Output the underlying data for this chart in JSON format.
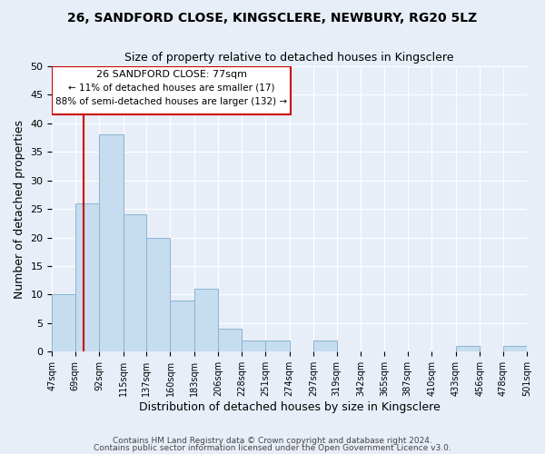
{
  "title1": "26, SANDFORD CLOSE, KINGSCLERE, NEWBURY, RG20 5LZ",
  "title2": "Size of property relative to detached houses in Kingsclere",
  "xlabel": "Distribution of detached houses by size in Kingsclere",
  "ylabel": "Number of detached properties",
  "bar_edges": [
    47,
    69,
    92,
    115,
    137,
    160,
    183,
    206,
    228,
    251,
    274,
    297,
    319,
    342,
    365,
    387,
    410,
    433,
    456,
    478,
    501
  ],
  "bar_heights": [
    10,
    26,
    38,
    24,
    20,
    9,
    11,
    4,
    2,
    2,
    0,
    2,
    0,
    0,
    0,
    0,
    0,
    1,
    0,
    1
  ],
  "bar_color": "#c6dcef",
  "bar_edge_color": "#8ab4d4",
  "property_line_x": 77,
  "property_line_color": "#cc0000",
  "annotation_box_color": "#ffffff",
  "annotation_border_color": "#cc0000",
  "annotation_text1": "26 SANDFORD CLOSE: 77sqm",
  "annotation_text2": "← 11% of detached houses are smaller (17)",
  "annotation_text3": "88% of semi-detached houses are larger (132) →",
  "ylim": [
    0,
    50
  ],
  "yticks": [
    0,
    5,
    10,
    15,
    20,
    25,
    30,
    35,
    40,
    45,
    50
  ],
  "tick_labels": [
    "47sqm",
    "69sqm",
    "92sqm",
    "115sqm",
    "137sqm",
    "160sqm",
    "183sqm",
    "206sqm",
    "228sqm",
    "251sqm",
    "274sqm",
    "297sqm",
    "319sqm",
    "342sqm",
    "365sqm",
    "387sqm",
    "410sqm",
    "433sqm",
    "456sqm",
    "478sqm",
    "501sqm"
  ],
  "footnote1": "Contains HM Land Registry data © Crown copyright and database right 2024.",
  "footnote2": "Contains public sector information licensed under the Open Government Licence v3.0.",
  "bg_color": "#e8eef8"
}
